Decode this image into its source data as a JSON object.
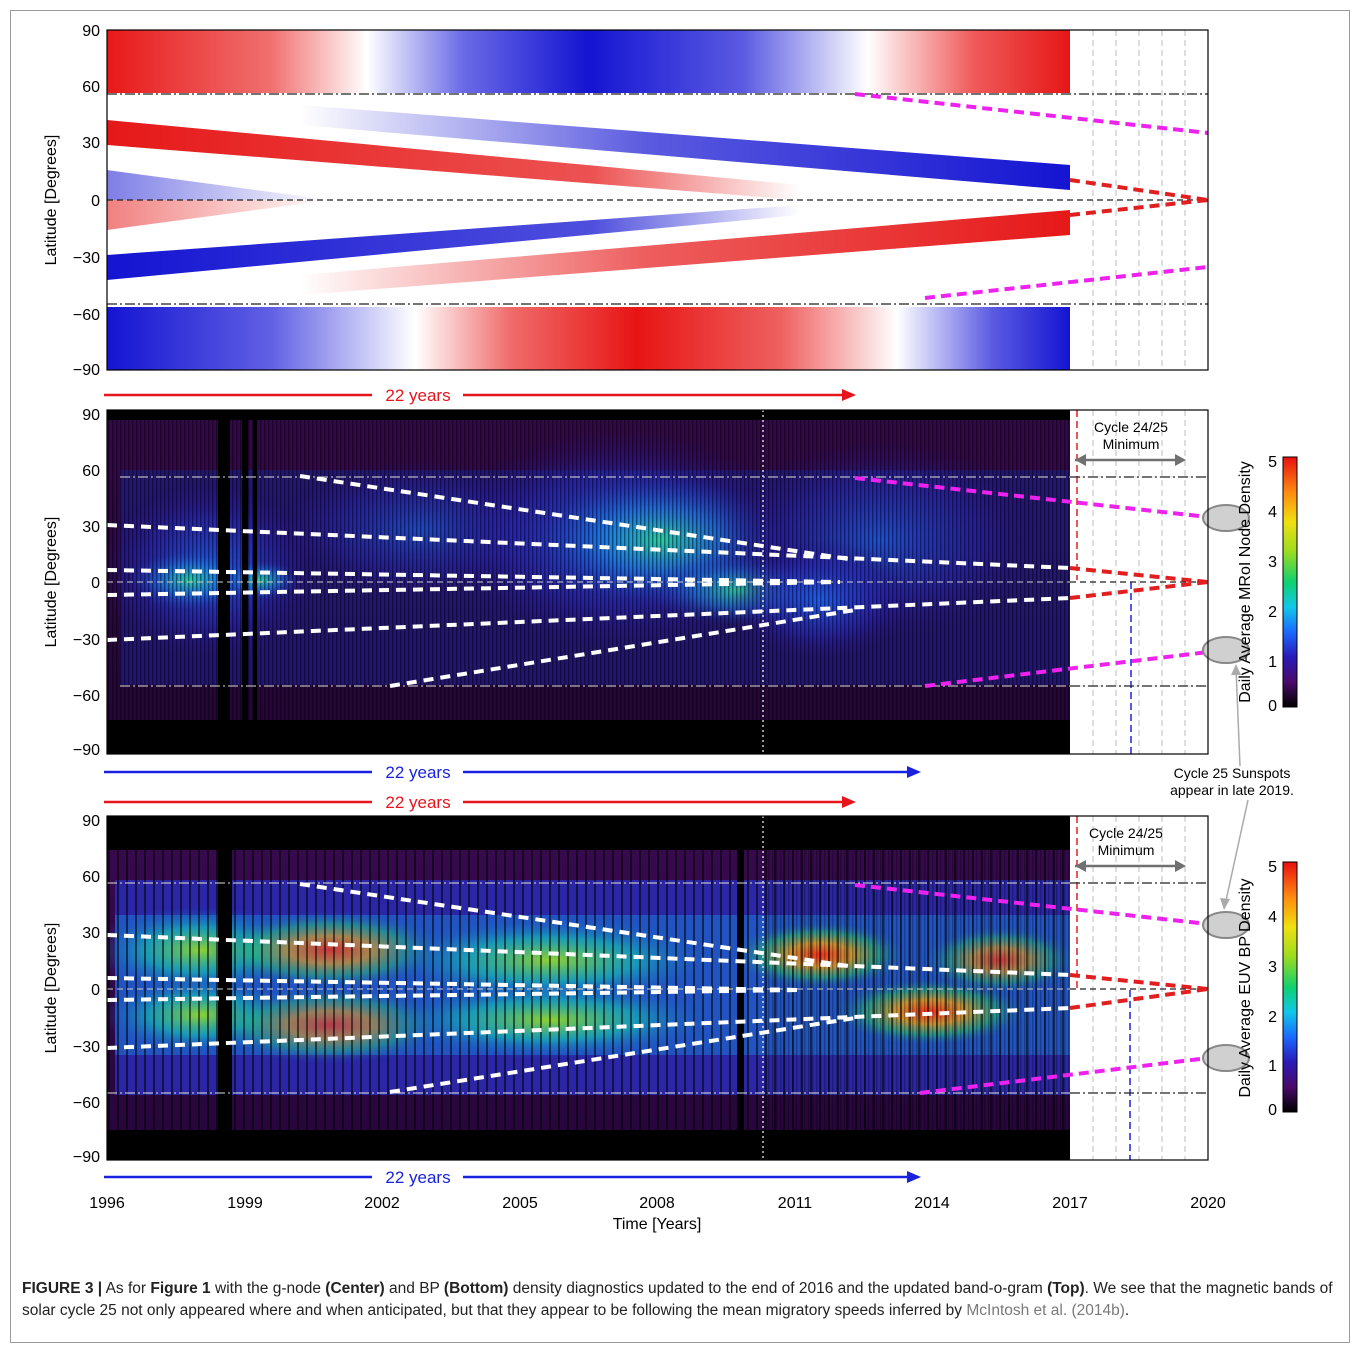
{
  "figure": {
    "panels": [
      {
        "id": "top",
        "ylabel": "Latitude [Degrees]",
        "yticks": [
          "90",
          "60",
          "30",
          "0",
          "−30",
          "−60",
          "−90"
        ]
      },
      {
        "id": "center",
        "ylabel": "Latitude [Degrees]",
        "yticks": [
          "90",
          "60",
          "30",
          "0",
          "−30",
          "−60",
          "−90"
        ],
        "colorbar_label": "Daily Average MRoI Node Density",
        "colorbar_ticks": [
          "5",
          "4",
          "3",
          "2",
          "1",
          "0"
        ],
        "minimum_label_1": "Cycle 24/25",
        "minimum_label_2": "Minimum"
      },
      {
        "id": "bottom",
        "ylabel": "Latitude [Degrees]",
        "yticks": [
          "90",
          "60",
          "30",
          "0",
          "−30",
          "−60",
          "−90"
        ],
        "colorbar_label": "Daily Average EUV BP Density",
        "colorbar_ticks": [
          "5",
          "4",
          "3",
          "2",
          "1",
          "0"
        ],
        "minimum_label_1": "Cycle 24/25",
        "minimum_label_2": "Minimum"
      }
    ],
    "arrows": [
      {
        "label": "22 years",
        "color": "#e8141c"
      },
      {
        "label": "22 years",
        "color": "#1a22e0"
      },
      {
        "label": "22 years",
        "color": "#e8141c"
      },
      {
        "label": "22 years",
        "color": "#1a22e0"
      }
    ],
    "xticks": [
      "1996",
      "1999",
      "2002",
      "2005",
      "2008",
      "2011",
      "2014",
      "2017",
      "2020"
    ],
    "xlabel": "Time [Years]",
    "annotation_line1": "Cycle 25 Sunspots",
    "annotation_line2": "appear in late 2019."
  },
  "chart_data": [
    {
      "type": "heatmap",
      "title": "",
      "xlabel": "",
      "ylabel": "Latitude [Degrees]",
      "xlim": [
        1996,
        2020
      ],
      "ylim": [
        -90,
        90
      ],
      "bands_descr_note": "",
      "markers": {
        "dash_dot_latitudes": [
          55,
          -55
        ],
        "equator_dashed": 0,
        "data_end_year": 2017
      }
    },
    {
      "type": "heatmap",
      "title": "",
      "xlabel": "",
      "ylabel": "Latitude [Degrees]",
      "xlim": [
        1996,
        2020
      ],
      "ylim": [
        -90,
        90
      ],
      "colorbar": {
        "label": "Daily Average MRoI Node Density",
        "range": [
          0,
          5
        ]
      },
      "vertical_markers_years": [
        2010.4,
        2017.1,
        2018.3
      ]
    },
    {
      "type": "heatmap",
      "title": "",
      "xlabel": "Time [Years]",
      "ylabel": "Latitude [Degrees]",
      "xlim": [
        1996,
        2020
      ],
      "ylim": [
        -90,
        90
      ],
      "colorbar": {
        "label": "Daily Average EUV BP Density",
        "range": [
          0,
          5
        ]
      },
      "vertical_markers_years": [
        2010.4,
        2017.1,
        2018.3
      ]
    }
  ],
  "caption": {
    "label": "FIGURE 3 |",
    "p1": " As for ",
    "b1": "Figure 1",
    "p2": " with the g-node ",
    "b2": "(Center)",
    "p3": " and BP ",
    "b3": "(Bottom)",
    "p4": " density diagnostics updated to the end of 2016 and the updated band-o-gram ",
    "b4": "(Top)",
    "p5": ".  We see that the magnetic bands of solar cycle 25 not only appeared where and when anticipated, but that they appear to be following the mean migratory speeds inferred by ",
    "ref": "McIntosh et al. (2014b)",
    "p6": "."
  },
  "colors": {
    "red": "#e8141c",
    "blue": "#1a22e0",
    "magenta": "#ee22ee",
    "band_red": "#e61818",
    "band_blue": "#1414d2"
  }
}
